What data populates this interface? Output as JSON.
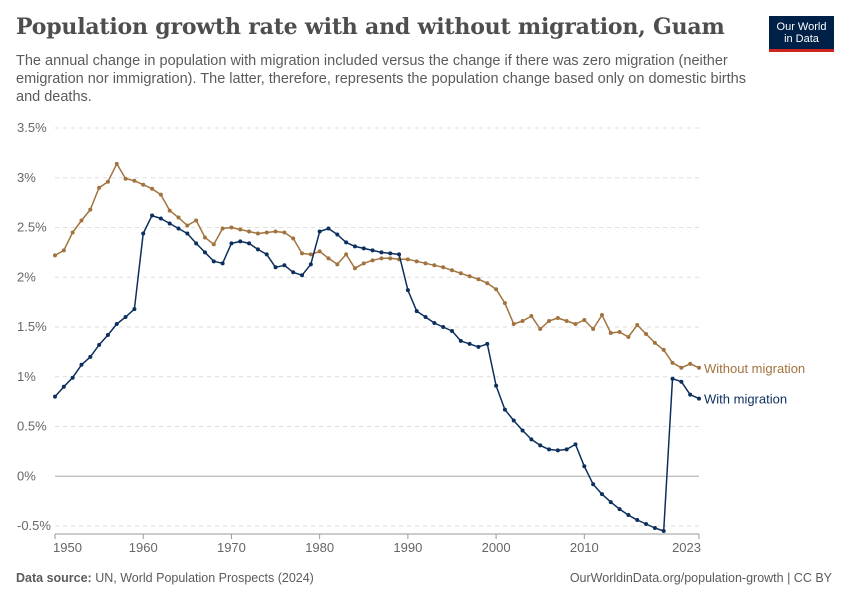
{
  "header": {
    "title": "Population growth rate with and without migration, Guam",
    "subtitle": "The annual change in population with migration included versus the change if there was zero migration (neither emigration nor immigration). The latter, therefore, represents the population change based only on domestic births and deaths.",
    "logo_line1": "Our World",
    "logo_line2": "in Data"
  },
  "footer": {
    "source_label": "Data source:",
    "source_text": "UN, World Population Prospects (2024)",
    "url": "OurWorldinData.org/population-growth | CC BY"
  },
  "chart_data": {
    "type": "line",
    "ylim": [
      -0.5,
      3.5
    ],
    "xlim": [
      1950,
      2023
    ],
    "y_ticks": [
      -0.5,
      0,
      0.5,
      1,
      1.5,
      2,
      2.5,
      3,
      3.5
    ],
    "y_tick_labels": [
      "-0.5%",
      "0%",
      "0.5%",
      "1%",
      "1.5%",
      "2%",
      "2.5%",
      "3%",
      "3.5%"
    ],
    "x_ticks": [
      1950,
      1960,
      1970,
      1980,
      1990,
      2000,
      2010,
      2023
    ],
    "x_tick_labels": [
      "1950",
      "1960",
      "1970",
      "1980",
      "1990",
      "2000",
      "2010",
      "2023"
    ],
    "grid": "horizontal dashed",
    "legend": "line-end labels",
    "x": [
      1950,
      1951,
      1952,
      1953,
      1954,
      1955,
      1956,
      1957,
      1958,
      1959,
      1960,
      1961,
      1962,
      1963,
      1964,
      1965,
      1966,
      1967,
      1968,
      1969,
      1970,
      1971,
      1972,
      1973,
      1974,
      1975,
      1976,
      1977,
      1978,
      1979,
      1980,
      1981,
      1982,
      1983,
      1984,
      1985,
      1986,
      1987,
      1988,
      1989,
      1990,
      1991,
      1992,
      1993,
      1994,
      1995,
      1996,
      1997,
      1998,
      1999,
      2000,
      2001,
      2002,
      2003,
      2004,
      2005,
      2006,
      2007,
      2008,
      2009,
      2010,
      2011,
      2012,
      2013,
      2014,
      2015,
      2016,
      2017,
      2018,
      2019,
      2020,
      2021,
      2022,
      2023
    ],
    "series": [
      {
        "name": "Without migration",
        "color": "#a2733e",
        "values": [
          2.22,
          2.27,
          2.45,
          2.57,
          2.68,
          2.9,
          2.96,
          3.14,
          2.99,
          2.97,
          2.93,
          2.89,
          2.83,
          2.67,
          2.6,
          2.52,
          2.57,
          2.4,
          2.33,
          2.49,
          2.5,
          2.48,
          2.46,
          2.44,
          2.45,
          2.46,
          2.45,
          2.39,
          2.24,
          2.23,
          2.26,
          2.19,
          2.13,
          2.23,
          2.09,
          2.14,
          2.17,
          2.19,
          2.19,
          2.18,
          2.18,
          2.16,
          2.14,
          2.12,
          2.1,
          2.07,
          2.04,
          2.01,
          1.98,
          1.94,
          1.88,
          1.74,
          1.53,
          1.56,
          1.61,
          1.48,
          1.56,
          1.59,
          1.56,
          1.53,
          1.57,
          1.48,
          1.62,
          1.44,
          1.45,
          1.4,
          1.52,
          1.43,
          1.34,
          1.27,
          1.14,
          1.09,
          1.13,
          1.09
        ]
      },
      {
        "name": "With migration",
        "color": "#0d2f5e",
        "values": [
          0.8,
          0.9,
          0.99,
          1.12,
          1.2,
          1.32,
          1.42,
          1.53,
          1.6,
          1.68,
          2.44,
          2.62,
          2.59,
          2.54,
          2.49,
          2.44,
          2.34,
          2.25,
          2.16,
          2.14,
          2.34,
          2.36,
          2.34,
          2.28,
          2.23,
          2.1,
          2.12,
          2.05,
          2.02,
          2.13,
          2.46,
          2.49,
          2.43,
          2.35,
          2.31,
          2.29,
          2.27,
          2.25,
          2.24,
          2.23,
          1.87,
          1.66,
          1.6,
          1.54,
          1.5,
          1.46,
          1.36,
          1.33,
          1.3,
          1.33,
          0.91,
          0.67,
          0.56,
          0.46,
          0.37,
          0.31,
          0.27,
          0.26,
          0.27,
          0.32,
          0.1,
          -0.08,
          -0.18,
          -0.26,
          -0.33,
          -0.39,
          -0.44,
          -0.48,
          -0.52,
          -0.55,
          0.98,
          0.95,
          0.82,
          0.78
        ]
      }
    ]
  }
}
